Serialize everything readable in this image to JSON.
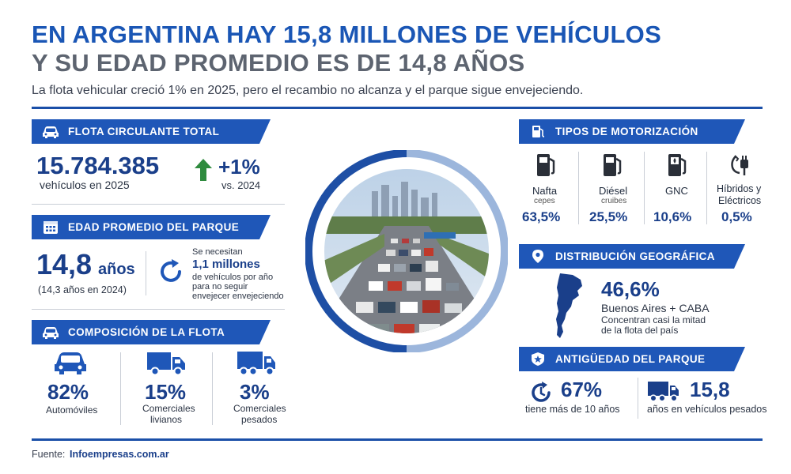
{
  "header": {
    "title_line1": "EN ARGENTINA HAY 15,8 MILLONES DE VEHÍCULOS",
    "title_line2": "Y SU EDAD PROMEDIO ES DE 14,8 AÑOS",
    "subtitle": "La flota vehicular creció 1% en 2025, pero el recambio no alcanza y el parque sigue envejeciendo."
  },
  "flota": {
    "heading": "FLOTA CIRCULANTE TOTAL",
    "total": "15.784.385",
    "total_caption": "vehículos en 2025",
    "growth": "+1%",
    "growth_caption": "vs. 2024"
  },
  "edad": {
    "heading": "EDAD PROMEDIO DEL PARQUE",
    "value": "14,8",
    "unit": "años",
    "previous": "(14,3 años en 2024)",
    "need_line1": "Se necesitan",
    "need_value": "1,1 millones",
    "need_line2": "de vehículos por año",
    "need_line3": "para no seguir",
    "need_line4": "envejecer envejeciendo"
  },
  "composicion": {
    "heading": "COMPOSICIÓN DE LA FLOTA",
    "items": [
      {
        "value": "82%",
        "label1": "Automóviles",
        "label2": ""
      },
      {
        "value": "15%",
        "label1": "Comerciales",
        "label2": "livianos"
      },
      {
        "value": "3%",
        "label1": "Comerciales",
        "label2": "pesados"
      }
    ]
  },
  "motorizacion": {
    "heading": "TIPOS DE MOTORIZACIÓN",
    "items": [
      {
        "label1": "Nafta",
        "label2": "cepes",
        "value": "63,5%"
      },
      {
        "label1": "Diésel",
        "label2": "cruibes",
        "value": "25,5%"
      },
      {
        "label1": "GNC",
        "label2": "",
        "value": "10,6%"
      },
      {
        "label1": "Híbridos y",
        "label2": "Eléctricos",
        "value": "0,5%"
      }
    ]
  },
  "distribucion": {
    "heading": "DISTRIBUCIÓN GEOGRÁFICA",
    "value": "46,6%",
    "region": "Buenos Aires + CABA",
    "caption1": "Concentran casi la mitad",
    "caption2": "de la flota del país"
  },
  "antiguedad": {
    "heading": "ANTIGÜEDAD DEL PARQUE",
    "pct": "67%",
    "pct_caption": "tiene más de 10 años",
    "heavy_value": "15,8",
    "heavy_caption": "años en vehículos pesados"
  },
  "footer": {
    "source_label": "Fuente:",
    "source": "Infoempresas.com.ar"
  },
  "colors": {
    "primary": "#1f57b8",
    "dark_blue": "#1a3f8a",
    "gray_title": "#5d6470",
    "ring_dark": "#1e4fa5",
    "ring_light": "#9cb6dc"
  }
}
